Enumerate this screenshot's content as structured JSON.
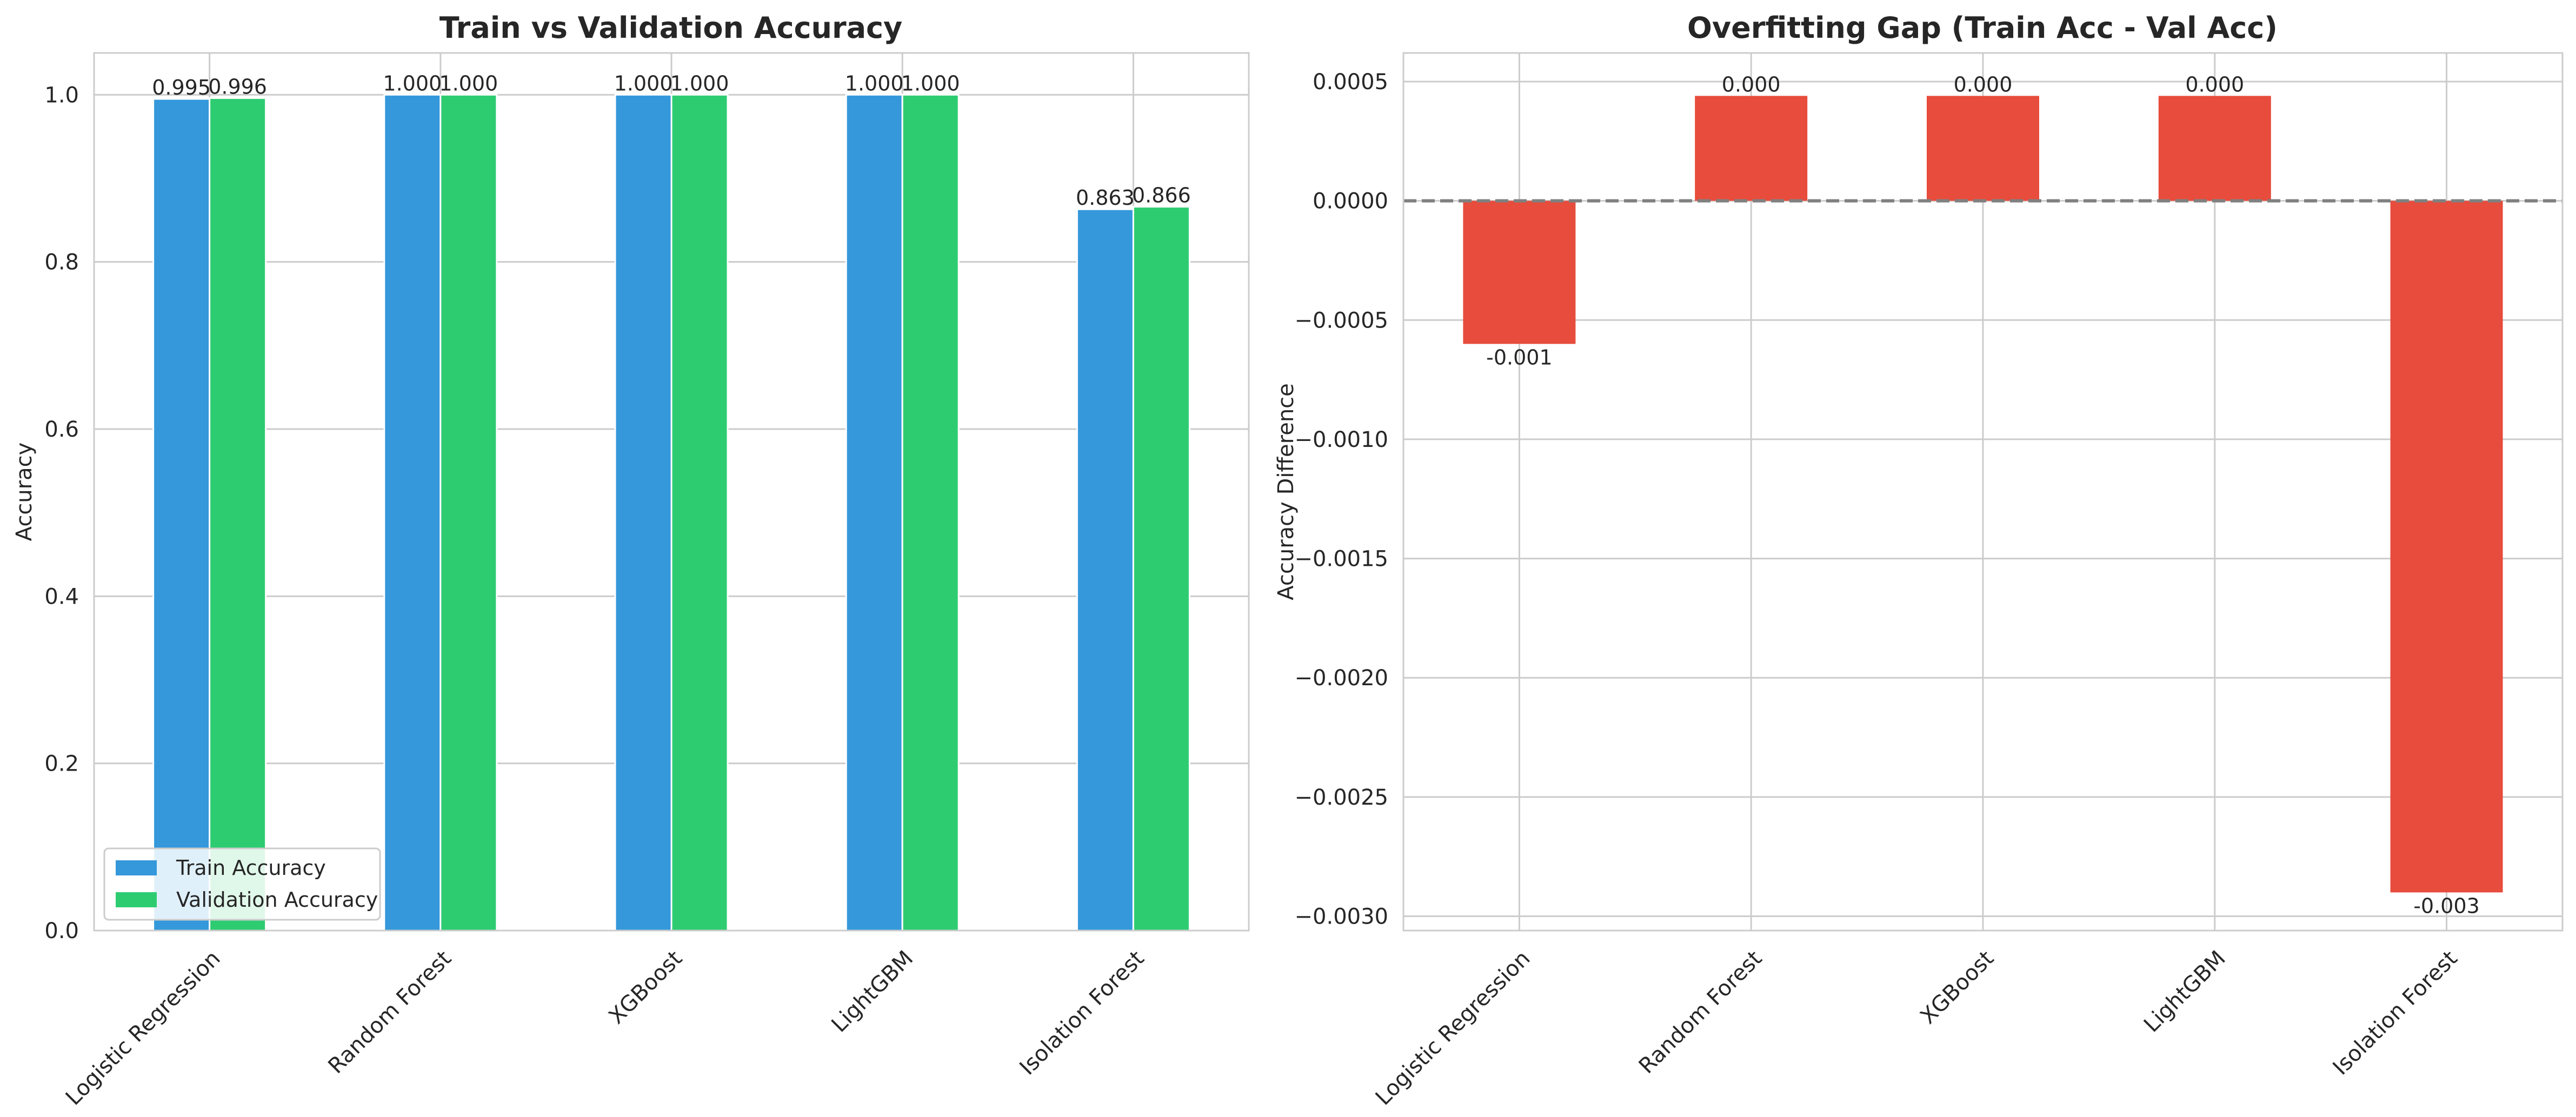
{
  "chart_data": [
    {
      "type": "bar",
      "title": "Train vs Validation Accuracy",
      "xlabel": "",
      "ylabel": "Accuracy",
      "categories": [
        "Logistic Regression",
        "Random Forest",
        "XGBoost",
        "LightGBM",
        "Isolation Forest"
      ],
      "series": [
        {
          "name": "Train Accuracy",
          "values": [
            0.995,
            1.0,
            1.0,
            1.0,
            0.863
          ],
          "labels": [
            "0.995",
            "1.000",
            "1.000",
            "1.000",
            "0.863"
          ],
          "color": "#3498db"
        },
        {
          "name": "Validation Accuracy",
          "values": [
            0.996,
            1.0,
            1.0,
            1.0,
            0.866
          ],
          "labels": [
            "0.996",
            "1.000",
            "1.000",
            "1.000",
            "0.866"
          ],
          "color": "#2ecc71"
        }
      ],
      "ylim": [
        0,
        1.05
      ],
      "yticks": [
        0.0,
        0.2,
        0.4,
        0.6,
        0.8,
        1.0
      ],
      "ytick_labels": [
        "0.0",
        "0.2",
        "0.4",
        "0.6",
        "0.8",
        "1.0"
      ],
      "legend": "lower-left",
      "grid": true
    },
    {
      "type": "bar",
      "title": "Overfitting Gap (Train Acc - Val Acc)",
      "xlabel": "",
      "ylabel": "Accuracy Difference",
      "categories": [
        "Logistic Regression",
        "Random Forest",
        "XGBoost",
        "LightGBM",
        "Isolation Forest"
      ],
      "values": [
        -0.0006,
        0.00044,
        0.00044,
        0.00044,
        -0.0029
      ],
      "labels": [
        "-0.001",
        "0.000",
        "0.000",
        "0.000",
        "-0.003"
      ],
      "color": "#e74c3c",
      "ylim": [
        -0.00306,
        0.00062
      ],
      "yticks": [
        0.0005,
        0.0,
        -0.0005,
        -0.001,
        -0.0015,
        -0.002,
        -0.0025,
        -0.003
      ],
      "ytick_labels": [
        "0.0005",
        "0.0000",
        "−0.0005",
        "−0.0010",
        "−0.0015",
        "−0.0020",
        "−0.0025",
        "−0.0030"
      ],
      "reference_line": {
        "y": 0,
        "style": "dashed",
        "color": "#808080"
      },
      "grid": true
    }
  ]
}
